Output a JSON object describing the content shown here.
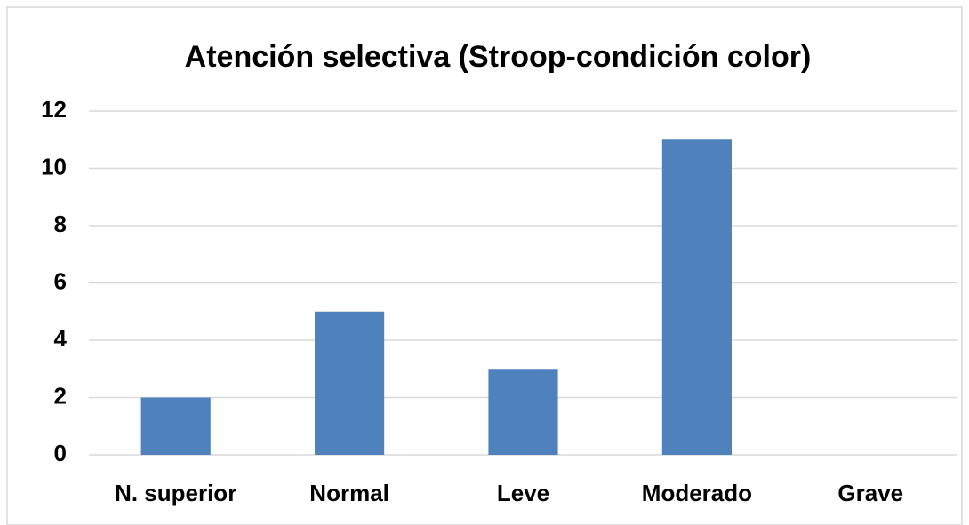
{
  "chart_data": {
    "type": "bar",
    "title": "Atención selectiva (Stroop-condición color)",
    "categories": [
      "N. superior",
      "Normal",
      "Leve",
      "Moderado",
      "Grave"
    ],
    "values": [
      2,
      5,
      3,
      11,
      0
    ],
    "color": "#4f81bd",
    "ylim": [
      0,
      12
    ],
    "yticks": [
      0,
      2,
      4,
      6,
      8,
      10,
      12
    ],
    "grid": true
  }
}
